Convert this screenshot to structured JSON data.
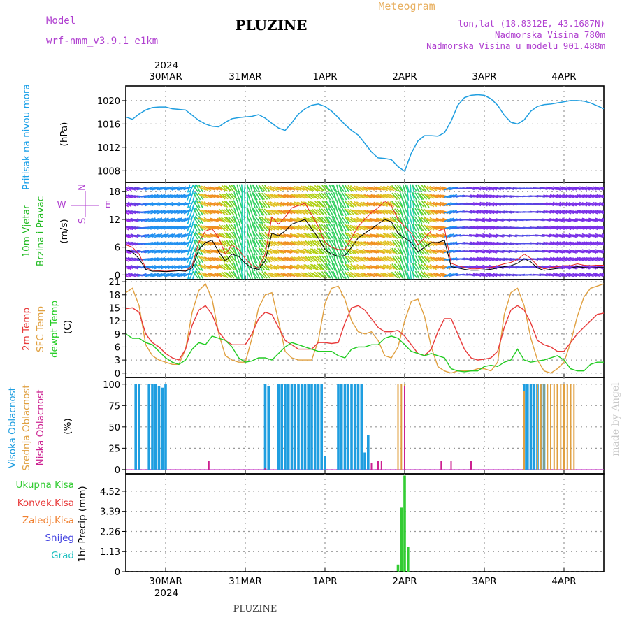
{
  "header": {
    "model_label": "Model",
    "model_name": "wrf-nmm_v3.9.1 e1km",
    "title": "PLUZINE",
    "chart_kind": "Meteogram",
    "coords": "lon,lat (18.8312E, 43.1687N)",
    "elevation": "Nadmorska Visina 780m",
    "model_elevation": "Nadmorska Visina u modelu 901.488m",
    "footer_title": "PLUZINE",
    "watermark": "made by Angel"
  },
  "time_axis": {
    "year": "2024",
    "days": [
      "30MAR",
      "31MAR",
      "1APR",
      "2APR",
      "3APR",
      "4APR"
    ],
    "unit": "hours since 29MAR 12UTC",
    "range": [
      0,
      144
    ],
    "day_positions": [
      12,
      36,
      60,
      84,
      108,
      132
    ]
  },
  "colors": {
    "pressure": "#1f9ee0",
    "wind_speed": "#000000",
    "gust": "#e82020",
    "temp2m": "#e83a3a",
    "sfc_temp": "#e0a040",
    "dewpoint": "#22cc22",
    "high_cloud": "#1f9ee0",
    "mid_cloud": "#e0a040",
    "low_cloud": "#cc2090",
    "precip_total": "#33cc33",
    "conv_precip": "#e83a3a",
    "frozen_precip": "#f08030",
    "snow": "#4040e0",
    "hail": "#20c0c0",
    "side_pressure": "#1aa0e8",
    "side_wind": "#22bb22",
    "side_wind_dir": "#b040d0"
  },
  "chart_data": [
    {
      "type": "line",
      "panel": "pressure",
      "ylabel_side": "Pritisak na nivou mora",
      "ylabel_unit": "(hPa)",
      "ylim": [
        1006,
        1022.5
      ],
      "yticks": [
        1008,
        1012,
        1016,
        1020
      ],
      "ytick_labels": [
        "1008",
        "1012",
        "1016",
        "1020"
      ],
      "x": [
        0,
        2,
        4,
        6,
        8,
        10,
        12,
        14,
        16,
        18,
        20,
        22,
        24,
        26,
        28,
        30,
        32,
        34,
        36,
        38,
        40,
        42,
        44,
        46,
        48,
        50,
        52,
        54,
        56,
        58,
        60,
        62,
        64,
        66,
        68,
        70,
        72,
        74,
        76,
        78,
        80,
        82,
        84,
        86,
        88,
        90,
        92,
        94,
        96,
        98,
        100,
        102,
        104,
        106,
        108,
        110,
        112,
        114,
        116,
        118,
        120,
        122,
        124,
        126,
        128,
        130,
        132,
        134,
        136,
        138,
        140,
        142,
        144
      ],
      "series": [
        {
          "name": "",
          "values": [
            1017.2,
            1016.8,
            1017.7,
            1018.4,
            1018.8,
            1018.9,
            1018.9,
            1018.6,
            1018.5,
            1018.4,
            1017.5,
            1016.6,
            1016.0,
            1015.6,
            1015.5,
            1016.3,
            1016.9,
            1017.1,
            1017.2,
            1017.3,
            1017.6,
            1017.0,
            1016.1,
            1015.3,
            1014.9,
            1016.2,
            1017.7,
            1018.6,
            1019.2,
            1019.4,
            1019.0,
            1018.2,
            1017.1,
            1015.9,
            1014.9,
            1014.1,
            1012.7,
            1011.2,
            1010.2,
            1010.1,
            1009.9,
            1008.7,
            1007.9,
            1011.0,
            1013.1,
            1014.0,
            1014.0,
            1013.9,
            1014.5,
            1016.5,
            1019.2,
            1020.5,
            1020.9,
            1021.0,
            1020.9,
            1020.3,
            1019.2,
            1017.5,
            1016.3,
            1016.0,
            1016.7,
            1018.2,
            1019.0,
            1019.3,
            1019.4,
            1019.6,
            1019.8,
            1020.0,
            1020.0,
            1019.9,
            1019.6,
            1019.1,
            1018.6
          ]
        }
      ]
    },
    {
      "type": "line",
      "panel": "wind",
      "ylabel_side1": "10m Vjetar",
      "ylabel_side2": "Brzina i Pravac",
      "ylabel_unit": "(m/s)",
      "dir_legend_n": "N",
      "dir_legend_s": "S",
      "dir_legend_w": "W",
      "dir_legend_e": "E",
      "ylim": [
        -1,
        20
      ],
      "yticks": [
        0,
        6,
        12,
        18
      ],
      "ytick_labels": [
        "0",
        "6",
        "12",
        "18"
      ],
      "x": [
        0,
        2,
        4,
        6,
        8,
        10,
        12,
        14,
        16,
        18,
        20,
        22,
        24,
        26,
        28,
        30,
        32,
        34,
        36,
        38,
        40,
        42,
        44,
        46,
        48,
        50,
        52,
        54,
        56,
        58,
        60,
        62,
        64,
        66,
        68,
        70,
        72,
        74,
        76,
        78,
        80,
        82,
        84,
        86,
        88,
        90,
        92,
        94,
        96,
        98,
        100,
        102,
        104,
        106,
        108,
        110,
        112,
        114,
        116,
        118,
        120,
        122,
        124,
        126,
        128,
        130,
        132,
        134,
        136,
        138,
        140,
        142,
        144
      ],
      "series": [
        {
          "name": "",
          "values": [
            5.5,
            5.0,
            3.5,
            1.2,
            0.8,
            0.8,
            0.7,
            0.8,
            0.9,
            0.8,
            1.5,
            5.5,
            7.0,
            7.5,
            5.0,
            3.0,
            4.5,
            4.0,
            2.5,
            1.5,
            1.2,
            3.0,
            9.0,
            8.5,
            9.5,
            11.0,
            11.5,
            12.0,
            10.0,
            8.0,
            5.5,
            4.5,
            4.0,
            4.2,
            6.0,
            8.0,
            9.0,
            10.0,
            11.0,
            12.0,
            11.5,
            9.0,
            8.0,
            7.0,
            5.0,
            6.0,
            7.0,
            7.0,
            7.5,
            1.8,
            1.5,
            1.2,
            1.0,
            1.0,
            1.1,
            1.2,
            1.5,
            1.8,
            2.0,
            2.5,
            3.5,
            2.8,
            1.5,
            1.0,
            1.2,
            1.4,
            1.5,
            1.5,
            1.8,
            1.6,
            1.5,
            1.6,
            1.6
          ]
        },
        {
          "name": "",
          "values": [
            6.5,
            6.0,
            4.5,
            1.5,
            1.0,
            0.9,
            0.8,
            0.9,
            1.0,
            0.9,
            2.0,
            7.0,
            9.5,
            10.0,
            8.0,
            4.5,
            6.5,
            5.5,
            3.5,
            2.0,
            1.5,
            4.5,
            12.5,
            11.0,
            12.5,
            14.5,
            15.0,
            15.5,
            13.0,
            10.5,
            7.0,
            6.0,
            5.5,
            5.5,
            8.0,
            10.5,
            12.0,
            13.5,
            14.5,
            16.0,
            15.0,
            12.0,
            10.5,
            9.0,
            6.5,
            8.0,
            9.5,
            9.5,
            10.0,
            2.5,
            2.0,
            1.6,
            1.3,
            1.3,
            1.5,
            1.6,
            2.0,
            2.4,
            2.7,
            3.3,
            4.5,
            3.6,
            2.0,
            1.3,
            1.6,
            1.8,
            2.0,
            2.0,
            2.4,
            2.1,
            2.0,
            2.1,
            2.1
          ]
        }
      ],
      "dir_deg": [
        300,
        290,
        280,
        260,
        250,
        250,
        250,
        250,
        250,
        250,
        200,
        150,
        120,
        110,
        110,
        130,
        140,
        160,
        180,
        160,
        150,
        140,
        120,
        115,
        110,
        110,
        115,
        120,
        125,
        130,
        140,
        150,
        160,
        150,
        130,
        120,
        115,
        110,
        110,
        115,
        120,
        140,
        160,
        170,
        150,
        140,
        120,
        110,
        110,
        250,
        260,
        270,
        280,
        285,
        290,
        290,
        285,
        280,
        280,
        275,
        270,
        270,
        275,
        280,
        285,
        290,
        290,
        290,
        285,
        290,
        290,
        290,
        290
      ]
    },
    {
      "type": "line",
      "panel": "temperature",
      "ylabel_side1": "2m Temp",
      "ylabel_side2": "SFC Temp",
      "ylabel_side3": "dewpt Temp",
      "ylabel_unit": "(C)",
      "ylim": [
        -1,
        21.5
      ],
      "yticks": [
        0,
        3,
        6,
        9,
        12,
        15,
        18,
        21
      ],
      "ytick_labels": [
        "0",
        "3",
        "6",
        "9",
        "12",
        "15",
        "18",
        "21"
      ],
      "x": [
        0,
        2,
        4,
        6,
        8,
        10,
        12,
        14,
        16,
        18,
        20,
        22,
        24,
        26,
        28,
        30,
        32,
        34,
        36,
        38,
        40,
        42,
        44,
        46,
        48,
        50,
        52,
        54,
        56,
        58,
        60,
        62,
        64,
        66,
        68,
        70,
        72,
        74,
        76,
        78,
        80,
        82,
        84,
        86,
        88,
        90,
        92,
        94,
        96,
        98,
        100,
        102,
        104,
        106,
        108,
        110,
        112,
        114,
        116,
        118,
        120,
        122,
        124,
        126,
        128,
        130,
        132,
        134,
        136,
        138,
        140,
        142,
        144
      ],
      "series": [
        {
          "name": "",
          "values": [
            14.8,
            15.0,
            14.0,
            9.0,
            7.0,
            6.0,
            4.5,
            3.5,
            3.0,
            5.5,
            11.0,
            14.5,
            15.5,
            13.5,
            9.5,
            7.5,
            6.5,
            6.5,
            6.5,
            9.0,
            12.5,
            14.0,
            13.5,
            10.5,
            7.5,
            6.5,
            5.5,
            5.5,
            5.5,
            7.0,
            7.0,
            6.8,
            7.0,
            11.5,
            15.0,
            15.5,
            14.5,
            12.5,
            10.5,
            9.5,
            9.5,
            9.8,
            8.5,
            6.5,
            4.5,
            4.0,
            5.5,
            9.5,
            12.5,
            12.5,
            9.0,
            5.5,
            3.5,
            3.0,
            3.2,
            3.5,
            5.0,
            10.5,
            14.5,
            15.5,
            14.5,
            11.5,
            7.5,
            6.5,
            6.0,
            5.0,
            5.0,
            7.0,
            9.0,
            10.5,
            12.0,
            13.5,
            13.8
          ]
        },
        {
          "name": "",
          "values": [
            18.5,
            19.5,
            15.5,
            6.5,
            4.0,
            3.0,
            2.5,
            2.0,
            2.0,
            5.5,
            14.0,
            19.0,
            20.5,
            17.0,
            9.0,
            4.0,
            3.0,
            2.5,
            2.5,
            8.0,
            15.0,
            18.0,
            18.5,
            12.0,
            5.0,
            3.5,
            3.0,
            3.0,
            3.0,
            7.5,
            16.0,
            19.5,
            20.0,
            17.0,
            12.0,
            9.5,
            9.0,
            9.5,
            7.5,
            4.0,
            3.5,
            6.0,
            12.0,
            16.5,
            17.0,
            13.0,
            6.0,
            1.5,
            0.5,
            0.0,
            0.5,
            0.5,
            0.5,
            1.0,
            1.0,
            0.5,
            2.5,
            13.5,
            18.5,
            19.5,
            15.5,
            8.0,
            3.0,
            0.5,
            0.0,
            1.0,
            2.5,
            7.0,
            13.0,
            17.5,
            19.5,
            20.0,
            20.5
          ]
        },
        {
          "name": "",
          "values": [
            9.0,
            8.0,
            8.0,
            7.0,
            6.5,
            5.0,
            3.5,
            2.5,
            2.0,
            3.0,
            5.5,
            7.0,
            6.5,
            8.5,
            8.0,
            7.5,
            6.0,
            3.5,
            2.5,
            2.8,
            3.5,
            3.5,
            3.0,
            4.5,
            6.0,
            7.0,
            6.5,
            6.0,
            5.5,
            5.0,
            5.0,
            5.0,
            4.0,
            3.5,
            5.5,
            6.0,
            6.0,
            6.5,
            6.5,
            8.0,
            8.5,
            8.0,
            6.5,
            5.0,
            4.5,
            4.0,
            4.5,
            4.0,
            3.5,
            1.0,
            0.5,
            0.3,
            0.5,
            0.5,
            1.5,
            1.8,
            1.5,
            2.5,
            3.0,
            5.5,
            3.0,
            2.5,
            2.8,
            3.0,
            3.5,
            4.0,
            3.0,
            1.0,
            0.5,
            0.5,
            2.0,
            2.5,
            2.5
          ]
        }
      ]
    },
    {
      "type": "bar",
      "panel": "clouds",
      "ylabel_side1": "Visoka Oblacnost",
      "ylabel_side2": "Srednja Oblacnost",
      "ylabel_side3": "Niska Oblacnost",
      "ylabel_unit": "(%)",
      "ylim": [
        -5,
        108
      ],
      "yticks": [
        0,
        25,
        50,
        75,
        100
      ],
      "ytick_labels": [
        "0",
        "25",
        "50",
        "75",
        "100"
      ],
      "series": [
        {
          "name": "",
          "x": [
            3,
            4,
            7,
            8,
            9,
            10,
            11,
            12,
            42,
            43,
            46,
            47,
            48,
            49,
            50,
            51,
            52,
            53,
            54,
            55,
            56,
            57,
            58,
            59,
            60,
            64,
            65,
            66,
            67,
            68,
            69,
            70,
            71,
            72,
            73,
            120,
            121,
            122,
            123,
            124,
            125,
            126
          ],
          "values": [
            100,
            100,
            100,
            100,
            100,
            98,
            96,
            100,
            100,
            98,
            100,
            100,
            100,
            100,
            100,
            100,
            100,
            100,
            100,
            100,
            100,
            100,
            100,
            100,
            16,
            100,
            100,
            100,
            100,
            100,
            100,
            100,
            100,
            20,
            40,
            100,
            100,
            100,
            100,
            100,
            100,
            100
          ]
        },
        {
          "name": "",
          "x": [
            82,
            83,
            84,
            120,
            124,
            125,
            126,
            127,
            128,
            129,
            130,
            131,
            132,
            133,
            134,
            135
          ],
          "values": [
            100,
            100,
            100,
            92,
            100,
            100,
            100,
            100,
            100,
            100,
            100,
            100,
            100,
            100,
            100,
            100
          ]
        },
        {
          "name": "",
          "x": [
            25,
            42,
            74,
            76,
            77,
            84,
            95,
            98,
            104
          ],
          "values": [
            10,
            2,
            8,
            10,
            10,
            98,
            10,
            10,
            10
          ]
        }
      ]
    },
    {
      "type": "bar",
      "panel": "precipitation",
      "ylabel": "1hr Precip (mm)",
      "legend": [
        "Ukupna Kisa",
        "Konvek.Kisa",
        "Zaledj.Kisa",
        "Snijeg",
        "Grad"
      ],
      "ylim": [
        0,
        5.5
      ],
      "yticks": [
        0,
        1.13,
        2.26,
        3.39,
        4.52
      ],
      "ytick_labels": [
        "0",
        "1.13",
        "2.26",
        "3.39",
        "4.52"
      ],
      "series": [
        {
          "name": "Ukupna Kisa",
          "x": [
            82,
            83,
            84,
            85
          ],
          "values": [
            0.4,
            3.6,
            5.4,
            1.4
          ]
        }
      ]
    }
  ]
}
